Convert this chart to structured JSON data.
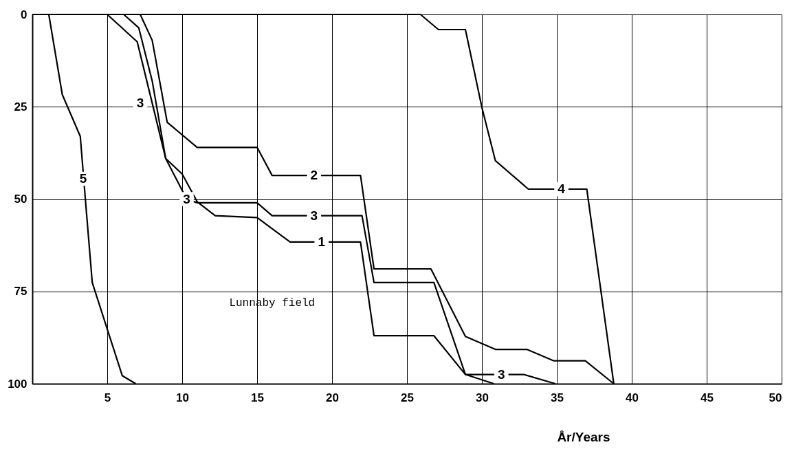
{
  "chart_data": {
    "type": "line",
    "xlabel": "År/Years",
    "xlim": [
      0,
      50
    ],
    "xticks": [
      {
        "value": 0,
        "label": null
      },
      5,
      10,
      15,
      20,
      25,
      30,
      35,
      40,
      45,
      50
    ],
    "ylim": [
      100,
      0
    ],
    "yticks": [
      0,
      25,
      50,
      75,
      100
    ],
    "grid": true,
    "marker": "none",
    "line_style": "solid",
    "series": [
      {
        "color": "#000000",
        "x": [
          0,
          1.1,
          2.0,
          3.2,
          3.6,
          4.0,
          6.0,
          6.9
        ],
        "values": [
          0,
          0,
          21.7,
          33,
          53,
          72.6,
          97.8,
          100
        ]
      },
      {
        "color": "#000000",
        "x": [
          0,
          7.2,
          8.0,
          9.0,
          11.0,
          15.0,
          16.0,
          21.9,
          22.8,
          26.6,
          28.9,
          30.9,
          33.0,
          34.8,
          36.9,
          38.8
        ],
        "values": [
          0,
          0,
          7.0,
          29.2,
          36,
          36,
          43.6,
          43.6,
          68.9,
          68.9,
          87.2,
          90.7,
          90.7,
          93.8,
          93.8,
          100
        ]
      },
      {
        "color": "#000000",
        "x": [
          0,
          5.0,
          7.0,
          8.0,
          8.9,
          10.3,
          11.0,
          15.0,
          16.0,
          22.0,
          22.8,
          26.8,
          28.9,
          32.8,
          34.9
        ],
        "values": [
          0,
          0,
          7.4,
          24,
          39,
          50,
          51,
          51,
          54.5,
          54.5,
          72.6,
          72.6,
          97.5,
          97.5,
          100
        ]
      },
      {
        "color": "#000000",
        "x": [
          0,
          6.1,
          7.1,
          8.0,
          8.9,
          10.0,
          11.0,
          12.2,
          15.0,
          17.2,
          21.9,
          22.8,
          26.8,
          28.9,
          30.8
        ],
        "values": [
          0,
          0,
          3.6,
          18,
          39,
          43.2,
          50.7,
          54.5,
          55,
          61.6,
          61.6,
          87,
          87,
          97.5,
          100
        ]
      },
      {
        "color": "#000000",
        "x": [
          0,
          25.9,
          27.1,
          28.9,
          30.0,
          30.9,
          33.1,
          37.0,
          38.8
        ],
        "values": [
          0,
          0,
          4.1,
          4.1,
          25.2,
          39.6,
          47.3,
          47.3,
          100
        ]
      }
    ],
    "annotations": [
      {
        "text": "5",
        "x": 3.4,
        "y": 44.5
      },
      {
        "text": "3",
        "x": 7.2,
        "y": 24
      },
      {
        "text": "3",
        "x": 10.3,
        "y": 50
      },
      {
        "text": "2",
        "x": 18.8,
        "y": 43.6
      },
      {
        "text": "3",
        "x": 18.8,
        "y": 54.5
      },
      {
        "text": "1",
        "x": 19.3,
        "y": 61.6
      },
      {
        "text": "4",
        "x": 35.3,
        "y": 47.3
      },
      {
        "text": "3",
        "x": 31.3,
        "y": 97.5
      },
      "Lunnaby field"
    ]
  }
}
